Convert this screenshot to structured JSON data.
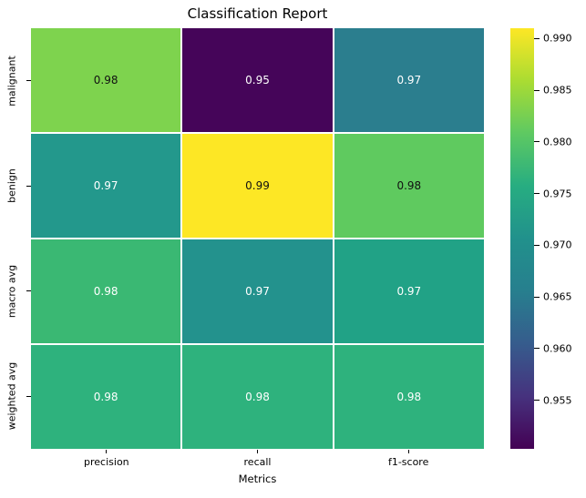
{
  "figure": {
    "background": "#ffffff"
  },
  "chart_data": {
    "type": "heatmap",
    "title": "Classification Report",
    "xlabel": "Metrics",
    "ylabel": "",
    "columns": [
      "precision",
      "recall",
      "f1-score"
    ],
    "rows": [
      "malignant",
      "benign",
      "macro avg",
      "weighted avg"
    ],
    "values": [
      [
        0.98,
        0.95,
        0.97
      ],
      [
        0.97,
        0.99,
        0.98
      ],
      [
        0.98,
        0.97,
        0.97
      ],
      [
        0.98,
        0.98,
        0.98
      ]
    ],
    "cells": [
      [
        {
          "label": "0.98",
          "bg": "#7ed34e",
          "fg": "#111111"
        },
        {
          "label": "0.95",
          "bg": "#450559",
          "fg": "#ffffff"
        },
        {
          "label": "0.97",
          "bg": "#2b7e8e",
          "fg": "#ffffff"
        }
      ],
      [
        {
          "label": "0.97",
          "bg": "#23988c",
          "fg": "#ffffff"
        },
        {
          "label": "0.99",
          "bg": "#fde725",
          "fg": "#111111"
        },
        {
          "label": "0.98",
          "bg": "#5fca5f",
          "fg": "#111111"
        }
      ],
      [
        {
          "label": "0.98",
          "bg": "#3ab873",
          "fg": "#ffffff"
        },
        {
          "label": "0.97",
          "bg": "#23928d",
          "fg": "#ffffff"
        },
        {
          "label": "0.97",
          "bg": "#21a286",
          "fg": "#ffffff"
        }
      ],
      [
        {
          "label": "0.98",
          "bg": "#2eb27d",
          "fg": "#ffffff"
        },
        {
          "label": "0.98",
          "bg": "#2eb27d",
          "fg": "#ffffff"
        },
        {
          "label": "0.98",
          "bg": "#2eb27d",
          "fg": "#ffffff"
        }
      ]
    ],
    "grid_line_color": "#ffffff",
    "colormap": "viridis",
    "legend_position": "right",
    "colorbar": {
      "tick_labels": [
        "0.990",
        "0.985",
        "0.980",
        "0.975",
        "0.970",
        "0.965",
        "0.960",
        "0.955"
      ],
      "tick_values": [
        0.99,
        0.985,
        0.98,
        0.975,
        0.97,
        0.965,
        0.96,
        0.955
      ],
      "vmin": 0.9503,
      "vmax": 0.991,
      "gradient_top_to_bottom": [
        "#fde725",
        "#aadc32",
        "#5ec962",
        "#27ad81",
        "#21918c",
        "#277f8e",
        "#365c8d",
        "#46327e",
        "#440154"
      ]
    }
  }
}
